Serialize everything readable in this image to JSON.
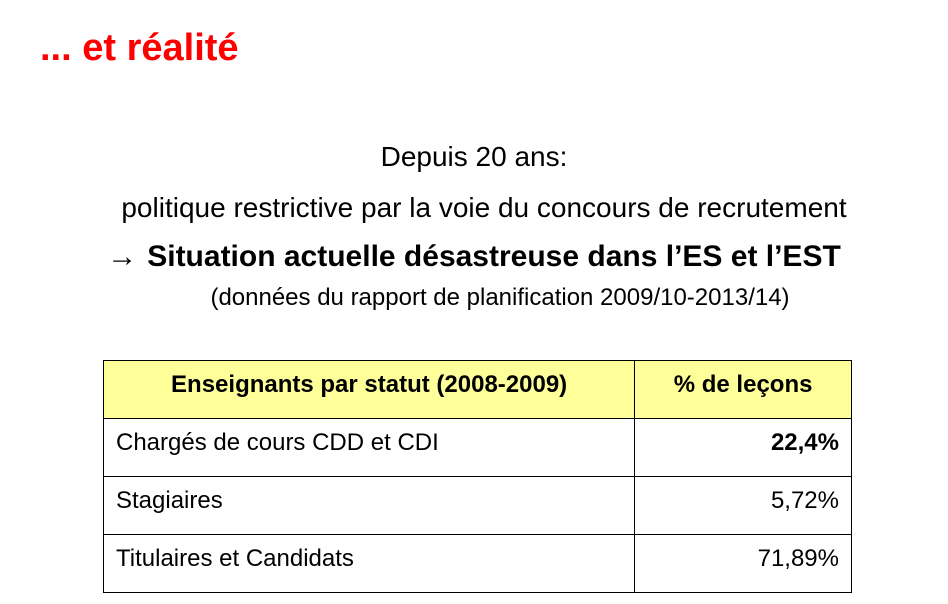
{
  "slide": {
    "title": "... et réalité",
    "title_color": "#ff0000",
    "header_fill_color": "#ffff99"
  },
  "body": {
    "line1": "Depuis 20 ans:",
    "line2": "politique restrictive par la voie du concours de recrutement",
    "line3_arrow": "→",
    "line3": "Situation actuelle désastreuse dans l’ES et l’EST",
    "line4": "(données du rapport de planification 2009/10-2013/14)"
  },
  "table": {
    "headers": [
      "Enseignants par statut  (2008-2009)",
      "% de leçons"
    ],
    "rows": [
      {
        "label": "Chargés de cours CDD et CDI",
        "value": "22,4%",
        "bold": true
      },
      {
        "label": "Stagiaires",
        "value": "5,72%",
        "bold": false
      },
      {
        "label": "Titulaires et Candidats",
        "value": "71,89%",
        "bold": false
      }
    ]
  }
}
